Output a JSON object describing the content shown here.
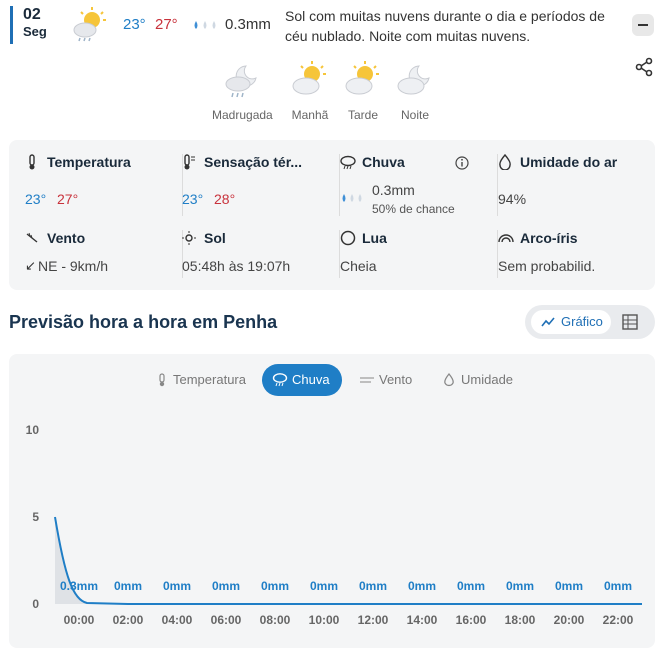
{
  "day": {
    "date": "02",
    "weekday": "Seg",
    "temp_min": "23°",
    "temp_max": "27°",
    "rain": "0.3mm",
    "description": "Sol com muitas nuvens durante o dia e períodos de céu nublado. Noite com muitas nuvens."
  },
  "periods": [
    {
      "label": "Madrugada",
      "icon": "cloud-moon-rain-icon"
    },
    {
      "label": "Manhã",
      "icon": "sun-cloud-icon"
    },
    {
      "label": "Tarde",
      "icon": "sun-cloud-icon"
    },
    {
      "label": "Noite",
      "icon": "cloud-moon-icon"
    }
  ],
  "details": {
    "temperatura": {
      "title": "Temperatura",
      "min": "23°",
      "max": "27°"
    },
    "sensacao": {
      "title": "Sensação tér...",
      "min": "23°",
      "max": "28°"
    },
    "chuva": {
      "title": "Chuva",
      "amount": "0.3mm",
      "chance": "50% de chance"
    },
    "umidade": {
      "title": "Umidade do ar",
      "value": "94%"
    },
    "vento": {
      "title": "Vento",
      "value": "NE - 9km/h"
    },
    "sol": {
      "title": "Sol",
      "value": "05:48h às 19:07h"
    },
    "lua": {
      "title": "Lua",
      "value": "Cheia"
    },
    "arco": {
      "title": "Arco-íris",
      "value": "Sem probabilid."
    }
  },
  "section": {
    "title": "Previsão hora a hora em Penha",
    "grafico_label": "Gráfico"
  },
  "chart_tabs": [
    {
      "label": "Temperatura",
      "active": false
    },
    {
      "label": "Chuva",
      "active": true
    },
    {
      "label": "Vento",
      "active": false
    },
    {
      "label": "Umidade",
      "active": false
    }
  ],
  "colors": {
    "accent": "#1f7ec6",
    "max": "#c8323c",
    "min": "#1f7ec6"
  },
  "chart_data": {
    "type": "area",
    "x": [
      "00:00",
      "02:00",
      "04:00",
      "06:00",
      "08:00",
      "10:00",
      "12:00",
      "14:00",
      "16:00",
      "18:00",
      "20:00",
      "22:00"
    ],
    "values": [
      0.3,
      0,
      0,
      0,
      0,
      0,
      0,
      0,
      0,
      0,
      0,
      0
    ],
    "data_labels": [
      "0.3mm",
      "0mm",
      "0mm",
      "0mm",
      "0mm",
      "0mm",
      "0mm",
      "0mm",
      "0mm",
      "0mm",
      "0mm",
      "0mm"
    ],
    "curve_start": 5,
    "ylim": [
      0,
      10
    ],
    "yticks": [
      "0",
      "5",
      "10"
    ],
    "grid": false
  }
}
